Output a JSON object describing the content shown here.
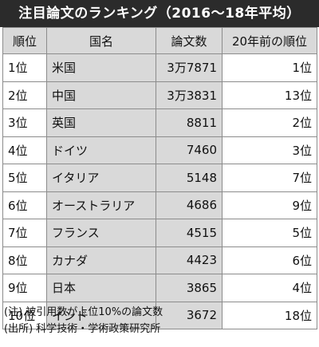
{
  "title": "注目論文のランキング（2016～18年平均）",
  "columns": [
    "順位",
    "国名",
    "論文数",
    "20年前の順位"
  ],
  "rows": [
    {
      "rank": "1位",
      "country": "米国",
      "papers": "3万7871",
      "prev_rank": "1位"
    },
    {
      "rank": "2位",
      "country": "中国",
      "papers": "3万3831",
      "prev_rank": "13位"
    },
    {
      "rank": "3位",
      "country": "英国",
      "papers": "8811",
      "prev_rank": "2位"
    },
    {
      "rank": "4位",
      "country": "ドイツ",
      "papers": "7460",
      "prev_rank": "3位"
    },
    {
      "rank": "5位",
      "country": "イタリア",
      "papers": "5148",
      "prev_rank": "7位"
    },
    {
      "rank": "6位",
      "country": "オーストラリア",
      "papers": "4686",
      "prev_rank": "9位"
    },
    {
      "rank": "7位",
      "country": "フランス",
      "papers": "4515",
      "prev_rank": "5位"
    },
    {
      "rank": "8位",
      "country": "カナダ",
      "papers": "4423",
      "prev_rank": "6位"
    },
    {
      "rank": "9位",
      "country": "日本",
      "papers": "3865",
      "prev_rank": "4位"
    },
    {
      "rank": "10位",
      "country": "インド",
      "papers": "3672",
      "prev_rank": "18位"
    }
  ],
  "notes": [
    "(注) 被引用数が上位10%の論文数",
    "(出所) 科学技術・学術政策研究所"
  ],
  "colors": {
    "title_bg": "#2b2b2b",
    "title_text": "#ffffff",
    "header_bg": "#d9d9d9",
    "shaded_cell_bg": "#d9d9d9",
    "border": "#8c8c8c"
  }
}
